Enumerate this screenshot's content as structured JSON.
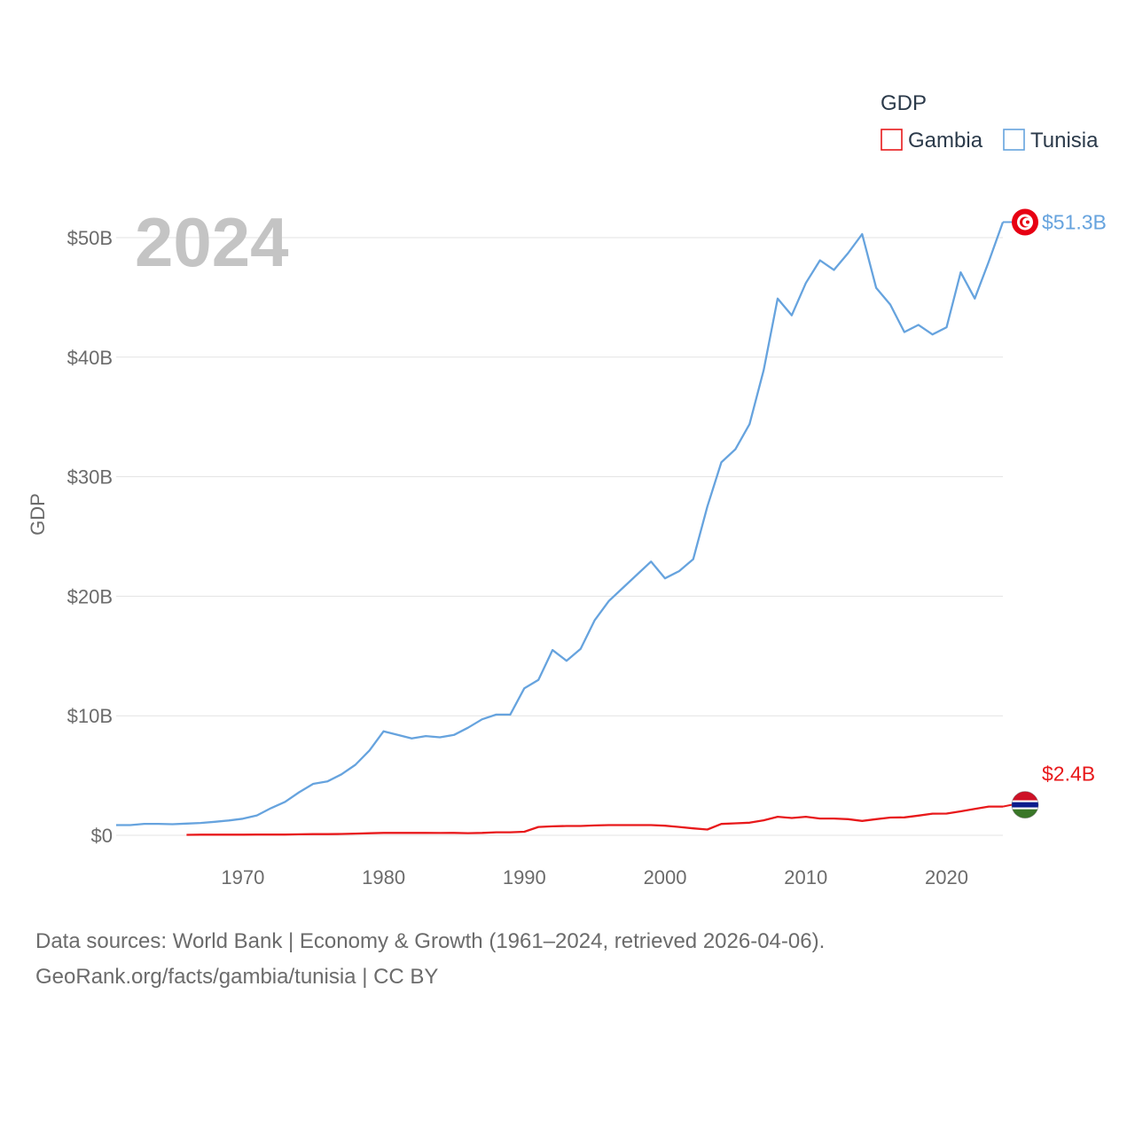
{
  "chart_data": {
    "type": "line",
    "title": "",
    "highlight_year": "2024",
    "ylabel": "GDP",
    "xlabel": "",
    "xlim": [
      1961,
      2024
    ],
    "ylim": [
      0,
      50000000000
    ],
    "x_ticks": [
      1970,
      1980,
      1990,
      2000,
      2010,
      2020
    ],
    "x_tick_labels": [
      "1970",
      "1980",
      "1990",
      "2000",
      "2010",
      "2020"
    ],
    "y_ticks": [
      0,
      10000000000,
      20000000000,
      30000000000,
      40000000000,
      50000000000
    ],
    "y_tick_labels": [
      "$0",
      "$10B",
      "$20B",
      "$30B",
      "$40B",
      "$50B"
    ],
    "grid": true,
    "legend": {
      "title": "GDP",
      "position": "top-right",
      "entries": [
        "Gambia",
        "Tunisia"
      ]
    },
    "series": [
      {
        "name": "Gambia",
        "color": "#e8191b",
        "end_label": "$2.4B",
        "x": [
          1966,
          1967,
          1968,
          1969,
          1970,
          1971,
          1972,
          1973,
          1974,
          1975,
          1976,
          1977,
          1978,
          1979,
          1980,
          1981,
          1982,
          1983,
          1984,
          1985,
          1986,
          1987,
          1988,
          1989,
          1990,
          1991,
          1992,
          1993,
          1994,
          1995,
          1996,
          1997,
          1998,
          1999,
          2000,
          2001,
          2002,
          2003,
          2004,
          2005,
          2006,
          2007,
          2008,
          2009,
          2010,
          2011,
          2012,
          2013,
          2014,
          2015,
          2016,
          2017,
          2018,
          2019,
          2020,
          2021,
          2022,
          2023,
          2024
        ],
        "values": [
          0.04,
          0.05,
          0.05,
          0.05,
          0.05,
          0.06,
          0.06,
          0.06,
          0.08,
          0.1,
          0.1,
          0.11,
          0.14,
          0.17,
          0.2,
          0.2,
          0.2,
          0.2,
          0.19,
          0.2,
          0.18,
          0.2,
          0.25,
          0.25,
          0.3,
          0.7,
          0.75,
          0.78,
          0.78,
          0.82,
          0.85,
          0.85,
          0.85,
          0.85,
          0.8,
          0.7,
          0.58,
          0.48,
          0.95,
          1.0,
          1.05,
          1.25,
          1.55,
          1.45,
          1.55,
          1.4,
          1.4,
          1.35,
          1.2,
          1.35,
          1.48,
          1.5,
          1.65,
          1.81,
          1.82,
          2.0,
          2.2,
          2.4,
          2.4
        ]
      },
      {
        "name": "Tunisia",
        "color": "#66a3de",
        "end_label": "$51.3B",
        "x": [
          1961,
          1962,
          1963,
          1964,
          1965,
          1966,
          1967,
          1968,
          1969,
          1970,
          1971,
          1972,
          1973,
          1974,
          1975,
          1976,
          1977,
          1978,
          1979,
          1980,
          1981,
          1982,
          1983,
          1984,
          1985,
          1986,
          1987,
          1988,
          1989,
          1990,
          1991,
          1992,
          1993,
          1994,
          1995,
          1996,
          1997,
          1998,
          1999,
          2000,
          2001,
          2002,
          2003,
          2004,
          2005,
          2006,
          2007,
          2008,
          2009,
          2010,
          2011,
          2012,
          2013,
          2014,
          2015,
          2016,
          2017,
          2018,
          2019,
          2020,
          2021,
          2022,
          2023,
          2024
        ],
        "values": [
          0.85,
          0.85,
          0.96,
          0.96,
          0.93,
          0.98,
          1.03,
          1.13,
          1.24,
          1.39,
          1.66,
          2.27,
          2.8,
          3.6,
          4.3,
          4.5,
          5.1,
          5.9,
          7.1,
          8.7,
          8.4,
          8.1,
          8.3,
          8.2,
          8.4,
          9.0,
          9.7,
          10.1,
          10.1,
          12.3,
          13.0,
          15.5,
          14.6,
          15.6,
          18.0,
          19.6,
          20.7,
          21.8,
          22.9,
          21.5,
          22.1,
          23.1,
          27.5,
          31.2,
          32.3,
          34.4,
          38.9,
          44.9,
          43.5,
          46.2,
          48.1,
          47.3,
          48.7,
          50.3,
          45.8,
          44.4,
          42.1,
          42.7,
          41.9,
          42.5,
          47.1,
          44.9,
          48.0,
          51.3
        ]
      }
    ]
  },
  "source": {
    "line1": "Data sources: World Bank | Economy & Growth (1961–2024, retrieved 2026-04-06).",
    "line2": "GeoRank.org/facts/gambia/tunisia | CC BY"
  }
}
